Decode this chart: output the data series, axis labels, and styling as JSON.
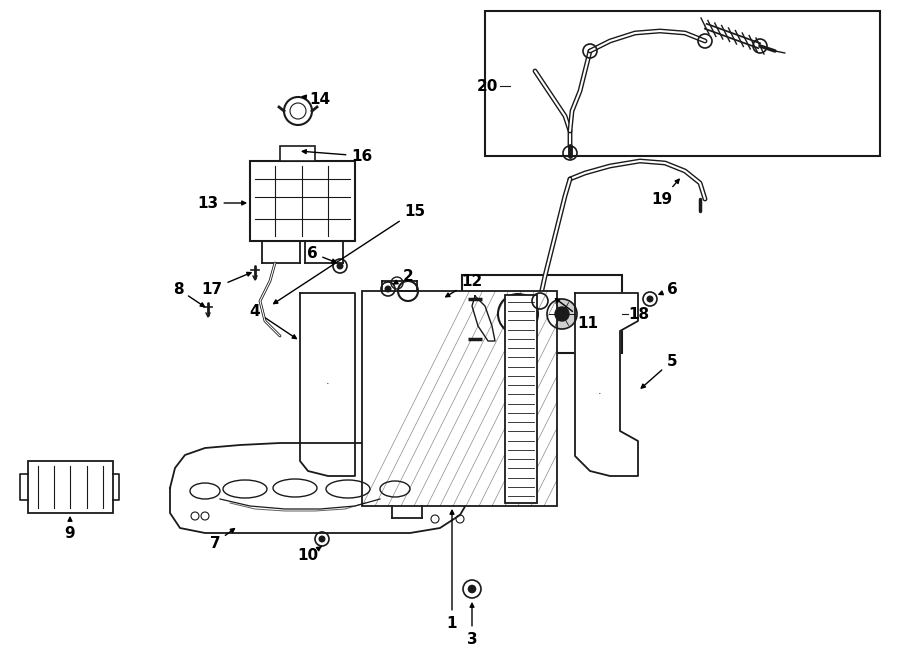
{
  "bg_color": "#ffffff",
  "line_color": "#1a1a1a",
  "label_color": "#000000",
  "fig_width": 9.0,
  "fig_height": 6.61,
  "dpi": 100
}
